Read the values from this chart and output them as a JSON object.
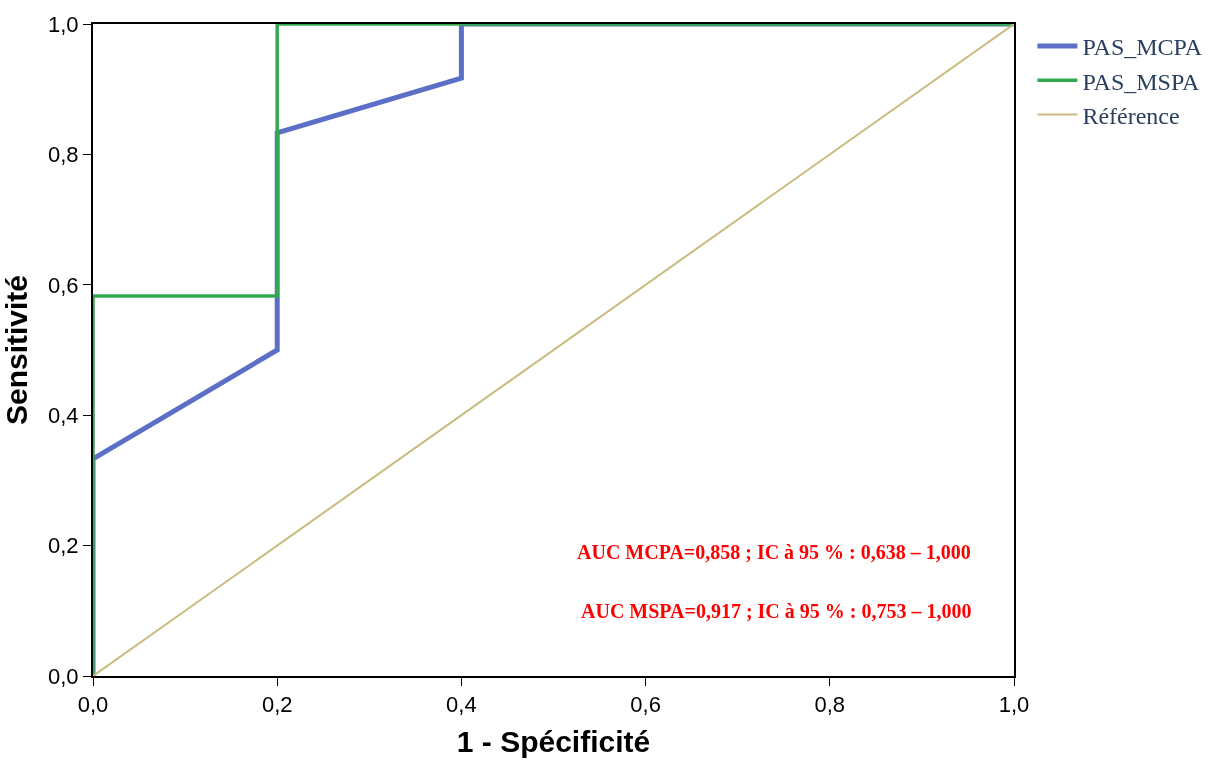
{
  "chart_data": {
    "type": "line",
    "xlabel": "1 - Spécificité",
    "ylabel": "Sensitivité",
    "series": [
      {
        "name": "PAS_MCPA",
        "color": "#5b6fc6",
        "x": [
          0,
          0,
          0.2,
          0.2,
          0.4,
          0.4,
          1
        ],
        "values": [
          0,
          0.333,
          0.5,
          0.833,
          0.917,
          1,
          1
        ]
      },
      {
        "name": "PAS_MSPA",
        "color": "#35a852",
        "x": [
          0,
          0,
          0.2,
          0.2,
          1
        ],
        "values": [
          0,
          0.583,
          0.583,
          1,
          1
        ]
      },
      {
        "name": "Référence",
        "color": "#c9bb7e",
        "x": [
          0,
          1
        ],
        "values": [
          0,
          1
        ]
      }
    ],
    "xlim": [
      0,
      1
    ],
    "ylim": [
      0,
      1
    ],
    "xticks": [
      {
        "value": 0,
        "label": "0,0"
      },
      {
        "value": 0.2,
        "label": "0,2"
      },
      {
        "value": 0.4,
        "label": "0,4"
      },
      {
        "value": 0.6,
        "label": "0,6"
      },
      {
        "value": 0.8,
        "label": "0,8"
      },
      {
        "value": 1,
        "label": "1,0"
      }
    ],
    "yticks": [
      {
        "value": 0,
        "label": "0,0"
      },
      {
        "value": 0.2,
        "label": "0,2"
      },
      {
        "value": 0.4,
        "label": "0,4"
      },
      {
        "value": 0.6,
        "label": "0,6"
      },
      {
        "value": 0.8,
        "label": "0,8"
      },
      {
        "value": 1,
        "label": "1,0"
      }
    ],
    "annotations": [
      "AUC MCPA=0,858 ; IC à 95 % : 0,638 – 1,000",
      "AUC MSPA=0,917 ; IC à 95 % : 0,753 – 1,000"
    ],
    "grid": false,
    "legend": "top right",
    "marker": "none",
    "line_style": "solid"
  }
}
